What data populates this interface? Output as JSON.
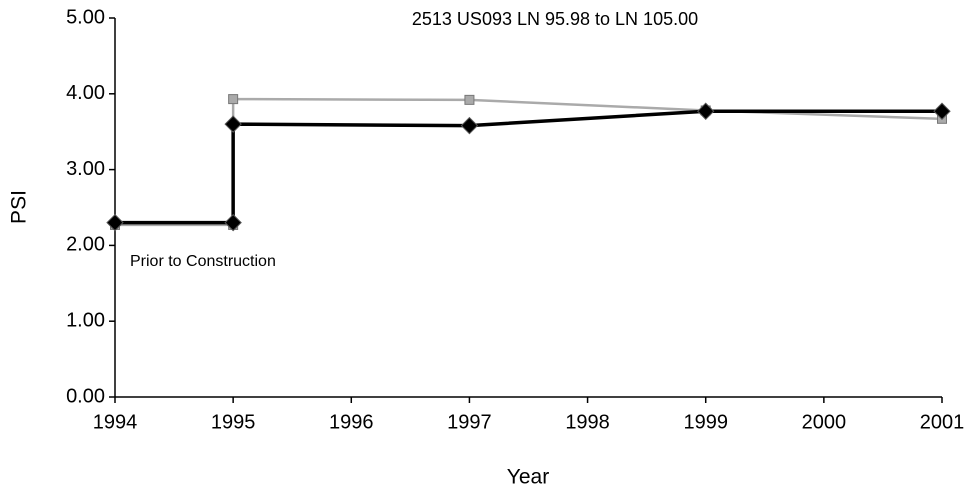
{
  "chart_data": {
    "type": "line",
    "title": "2513 US093 LN 95.98 to LN 105.00",
    "x_label": "Year",
    "y_label": "PSI",
    "annotation": "Prior to Construction",
    "x": [
      1994,
      1995,
      1995,
      1997,
      1999,
      2001
    ],
    "series": [
      {
        "color": "#aaaaaa",
        "marker": "square",
        "values": [
          2.27,
          2.27,
          3.93,
          3.92,
          3.78,
          3.67
        ]
      },
      {
        "color": "#000000",
        "marker": "diamond",
        "values": [
          2.3,
          2.3,
          3.6,
          3.58,
          3.77,
          3.77
        ]
      }
    ],
    "xlim": [
      1994,
      2001
    ],
    "xticks": [
      1994,
      1995,
      1996,
      1997,
      1998,
      1999,
      2000,
      2001
    ],
    "ylim": [
      0,
      5
    ],
    "yticks": [
      {
        "value": 0,
        "label": "0.00"
      },
      {
        "value": 1,
        "label": "1.00"
      },
      {
        "value": 2,
        "label": "2.00"
      },
      {
        "value": 3,
        "label": "3.00"
      },
      {
        "value": 4,
        "label": "4.00"
      },
      {
        "value": 5,
        "label": "5.00"
      }
    ],
    "grid": false
  }
}
